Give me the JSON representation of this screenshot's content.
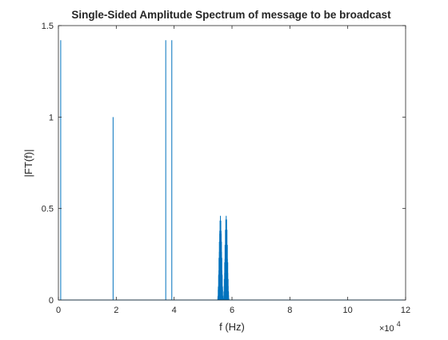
{
  "chart_data": {
    "type": "line",
    "title": "Single-Sided Amplitude Spectrum of message to be broadcast",
    "xlabel": "f (Hz)",
    "ylabel": "|FT(f)|",
    "x_exponent_label": "×10",
    "x_exponent_power": "4",
    "xlim": [
      0,
      120000
    ],
    "ylim": [
      0,
      1.5
    ],
    "x_ticks": [
      0,
      20000,
      40000,
      60000,
      80000,
      100000,
      120000
    ],
    "x_tick_labels": [
      "0",
      "2",
      "4",
      "6",
      "8",
      "10",
      "12"
    ],
    "y_ticks": [
      0,
      0.5,
      1,
      1.5
    ],
    "y_tick_labels": [
      "0",
      "0.5",
      "1",
      "1.5"
    ],
    "grid": false,
    "line_color": "#0072BD",
    "series": [
      {
        "spikes": [
          {
            "x": 800,
            "y": 1.42
          },
          {
            "x": 18900,
            "y": 1.0
          },
          {
            "x": 37100,
            "y": 1.42
          },
          {
            "x": 39200,
            "y": 1.42
          }
        ],
        "bands": [
          {
            "center": 56000,
            "half_width": 1000,
            "peak": 0.46,
            "freq": 3.2
          },
          {
            "center": 58000,
            "half_width": 1000,
            "peak": 0.46,
            "freq": 3.0
          }
        ]
      }
    ]
  }
}
